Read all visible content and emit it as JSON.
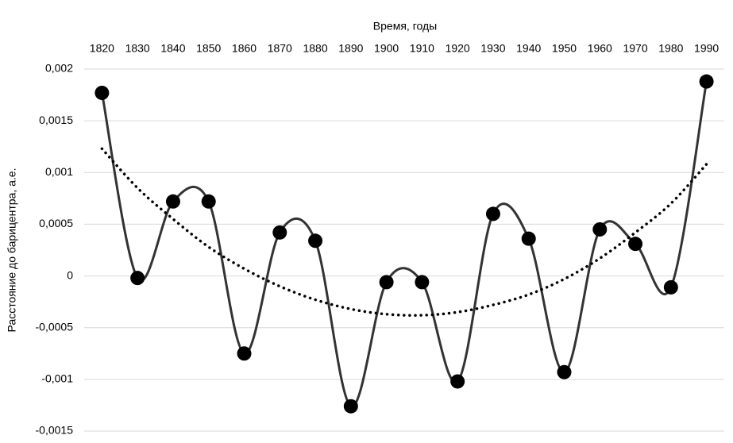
{
  "chart_data": {
    "type": "line",
    "x_label": "Время, годы",
    "y_label": "Расстояние до барицентра, а.е.",
    "x": [
      1820,
      1830,
      1840,
      1850,
      1860,
      1870,
      1880,
      1890,
      1900,
      1910,
      1920,
      1930,
      1940,
      1950,
      1960,
      1970,
      1980,
      1990
    ],
    "series": [
      {
        "color": "#333333",
        "marker": true,
        "style": "solid",
        "values": [
          0.00177,
          -2e-05,
          0.00072,
          0.00072,
          -0.00075,
          0.00042,
          0.00034,
          -0.00126,
          -6e-05,
          -6e-05,
          -0.00102,
          0.0006,
          0.00036,
          -0.00093,
          0.00045,
          0.00031,
          -0.00011,
          0.00188
        ]
      },
      {
        "color": "#000000",
        "marker": false,
        "style": "dotted",
        "values": [
          0.00123,
          0.00085,
          0.00055,
          0.00028,
          7e-05,
          -0.0001,
          -0.00023,
          -0.00032,
          -0.00037,
          -0.00038,
          -0.00035,
          -0.00028,
          -0.00018,
          -3e-05,
          0.00017,
          0.00042,
          0.0007,
          0.00108
        ]
      }
    ],
    "xlim": [
      1815,
      1995
    ],
    "xticks": [
      1820,
      1830,
      1840,
      1850,
      1860,
      1870,
      1880,
      1890,
      1900,
      1910,
      1920,
      1930,
      1940,
      1950,
      1960,
      1970,
      1980,
      1990
    ],
    "ylim": [
      -0.0015,
      0.002
    ],
    "yticks": [
      {
        "value": -0.0015,
        "label": "-0,0015"
      },
      {
        "value": -0.001,
        "label": "-0,001"
      },
      {
        "value": -0.0005,
        "label": "-0,0005"
      },
      0,
      {
        "value": 0.0005,
        "label": "0,0005"
      },
      {
        "value": 0.001,
        "label": "0,001"
      },
      {
        "value": 0.0015,
        "label": "0,0015"
      },
      {
        "value": 0.002,
        "label": "0,002"
      }
    ],
    "grid": true
  }
}
